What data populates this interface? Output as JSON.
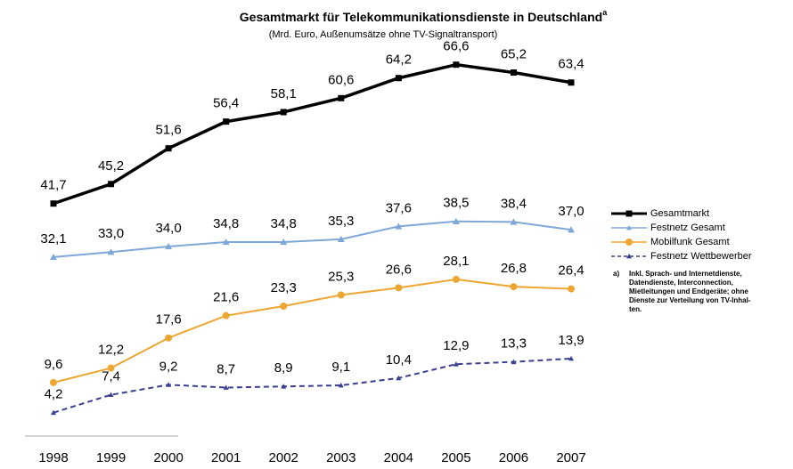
{
  "chart_data": {
    "type": "line",
    "title": "Gesamtmarkt für Telekommunikationsdienste in Deutschland",
    "title_superscript": "a",
    "subtitle": "(Mrd. Euro, Außenumsätze ohne TV-Signaltransport)",
    "categories": [
      "1998",
      "1999",
      "2000",
      "2001",
      "2002",
      "2003",
      "2004",
      "2005",
      "2006",
      "2007"
    ],
    "ylim": [
      0,
      70
    ],
    "series": [
      {
        "name": "Gesamtmarkt",
        "color": "#000000",
        "marker": "square",
        "dashed": false,
        "values": [
          41.7,
          45.2,
          51.6,
          56.4,
          58.1,
          60.6,
          64.2,
          66.6,
          65.2,
          63.4
        ],
        "value_labels": [
          "41,7",
          "45,2",
          "51,6",
          "56,4",
          "58,1",
          "60,6",
          "64,2",
          "66,6",
          "65,2",
          "63,4"
        ]
      },
      {
        "name": "Festnetz Gesamt",
        "color": "#7fa8d8",
        "marker": "triangle",
        "dashed": false,
        "values": [
          32.1,
          33.0,
          34.0,
          34.8,
          34.8,
          35.3,
          37.6,
          38.5,
          38.4,
          37.0
        ],
        "value_labels": [
          "32,1",
          "33,0",
          "34,0",
          "34,8",
          "34,8",
          "35,3",
          "37,6",
          "38,5",
          "38,4",
          "37,0"
        ]
      },
      {
        "name": "Mobilfunk Gesamt",
        "color": "#eda632",
        "marker": "circle",
        "dashed": false,
        "values": [
          9.6,
          12.2,
          17.6,
          21.6,
          23.3,
          25.3,
          26.6,
          28.1,
          26.8,
          26.4
        ],
        "value_labels": [
          "9,6",
          "12,2",
          "17,6",
          "21,6",
          "23,3",
          "25,3",
          "26,6",
          "28,1",
          "26,8",
          "26,4"
        ]
      },
      {
        "name": "Festnetz Wettbewerber",
        "color": "#3b3f8f",
        "marker": "triangle",
        "dashed": true,
        "values": [
          4.2,
          7.4,
          9.2,
          8.7,
          8.9,
          9.1,
          10.4,
          12.9,
          13.3,
          13.9
        ],
        "value_labels": [
          "4,2",
          "7,4",
          "9,2",
          "8,7",
          "8,9",
          "9,1",
          "10,4",
          "12,9",
          "13,3",
          "13,9"
        ]
      }
    ],
    "footnote_marker": "a)",
    "footnote_lines": [
      "Inkl. Sprach- und Internetdienste,",
      "Datendienste, Interconnection,",
      "Mietleitungen und Endgeräte; ohne",
      "Dienste zur Verteilung von TV-Inhal-",
      "ten."
    ]
  }
}
